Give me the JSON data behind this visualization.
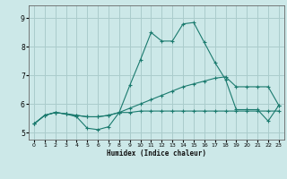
{
  "xlabel": "Humidex (Indice chaleur)",
  "bg_color": "#cce8e8",
  "grid_color": "#aacccc",
  "line_color": "#1a7a6e",
  "x_ticks": [
    0,
    1,
    2,
    3,
    4,
    5,
    6,
    7,
    8,
    9,
    10,
    11,
    12,
    13,
    14,
    15,
    16,
    17,
    18,
    19,
    20,
    21,
    22,
    23
  ],
  "y_ticks": [
    5,
    6,
    7,
    8,
    9
  ],
  "ylim": [
    4.75,
    9.45
  ],
  "xlim": [
    -0.5,
    23.5
  ],
  "series_flat_x": [
    0,
    1,
    2,
    3,
    4,
    5,
    6,
    7,
    8,
    9,
    10,
    11,
    12,
    13,
    14,
    15,
    16,
    17,
    18,
    19,
    20,
    21,
    22,
    23
  ],
  "series_flat_y": [
    5.3,
    5.6,
    5.7,
    5.65,
    5.6,
    5.55,
    5.55,
    5.6,
    5.7,
    5.7,
    5.75,
    5.75,
    5.75,
    5.75,
    5.75,
    5.75,
    5.75,
    5.75,
    5.75,
    5.75,
    5.75,
    5.75,
    5.75,
    5.75
  ],
  "series_diag_x": [
    0,
    1,
    2,
    3,
    4,
    5,
    6,
    7,
    8,
    9,
    10,
    11,
    12,
    13,
    14,
    15,
    16,
    17,
    18,
    19,
    20,
    21,
    22,
    23
  ],
  "series_diag_y": [
    5.3,
    5.6,
    5.7,
    5.65,
    5.6,
    5.55,
    5.55,
    5.6,
    5.7,
    5.85,
    6.0,
    6.15,
    6.3,
    6.45,
    6.6,
    6.7,
    6.8,
    6.9,
    6.95,
    6.6,
    6.6,
    6.6,
    6.6,
    5.95
  ],
  "series_main_x": [
    0,
    1,
    2,
    3,
    4,
    5,
    6,
    7,
    8,
    9,
    10,
    11,
    12,
    13,
    14,
    15,
    16,
    17,
    18,
    19,
    20,
    21,
    22,
    23
  ],
  "series_main_y": [
    5.3,
    5.6,
    5.7,
    5.65,
    5.55,
    5.15,
    5.1,
    5.2,
    5.7,
    6.65,
    7.55,
    8.5,
    8.2,
    8.2,
    8.8,
    8.85,
    8.15,
    7.45,
    6.85,
    5.8,
    5.8,
    5.8,
    5.4,
    5.95
  ]
}
